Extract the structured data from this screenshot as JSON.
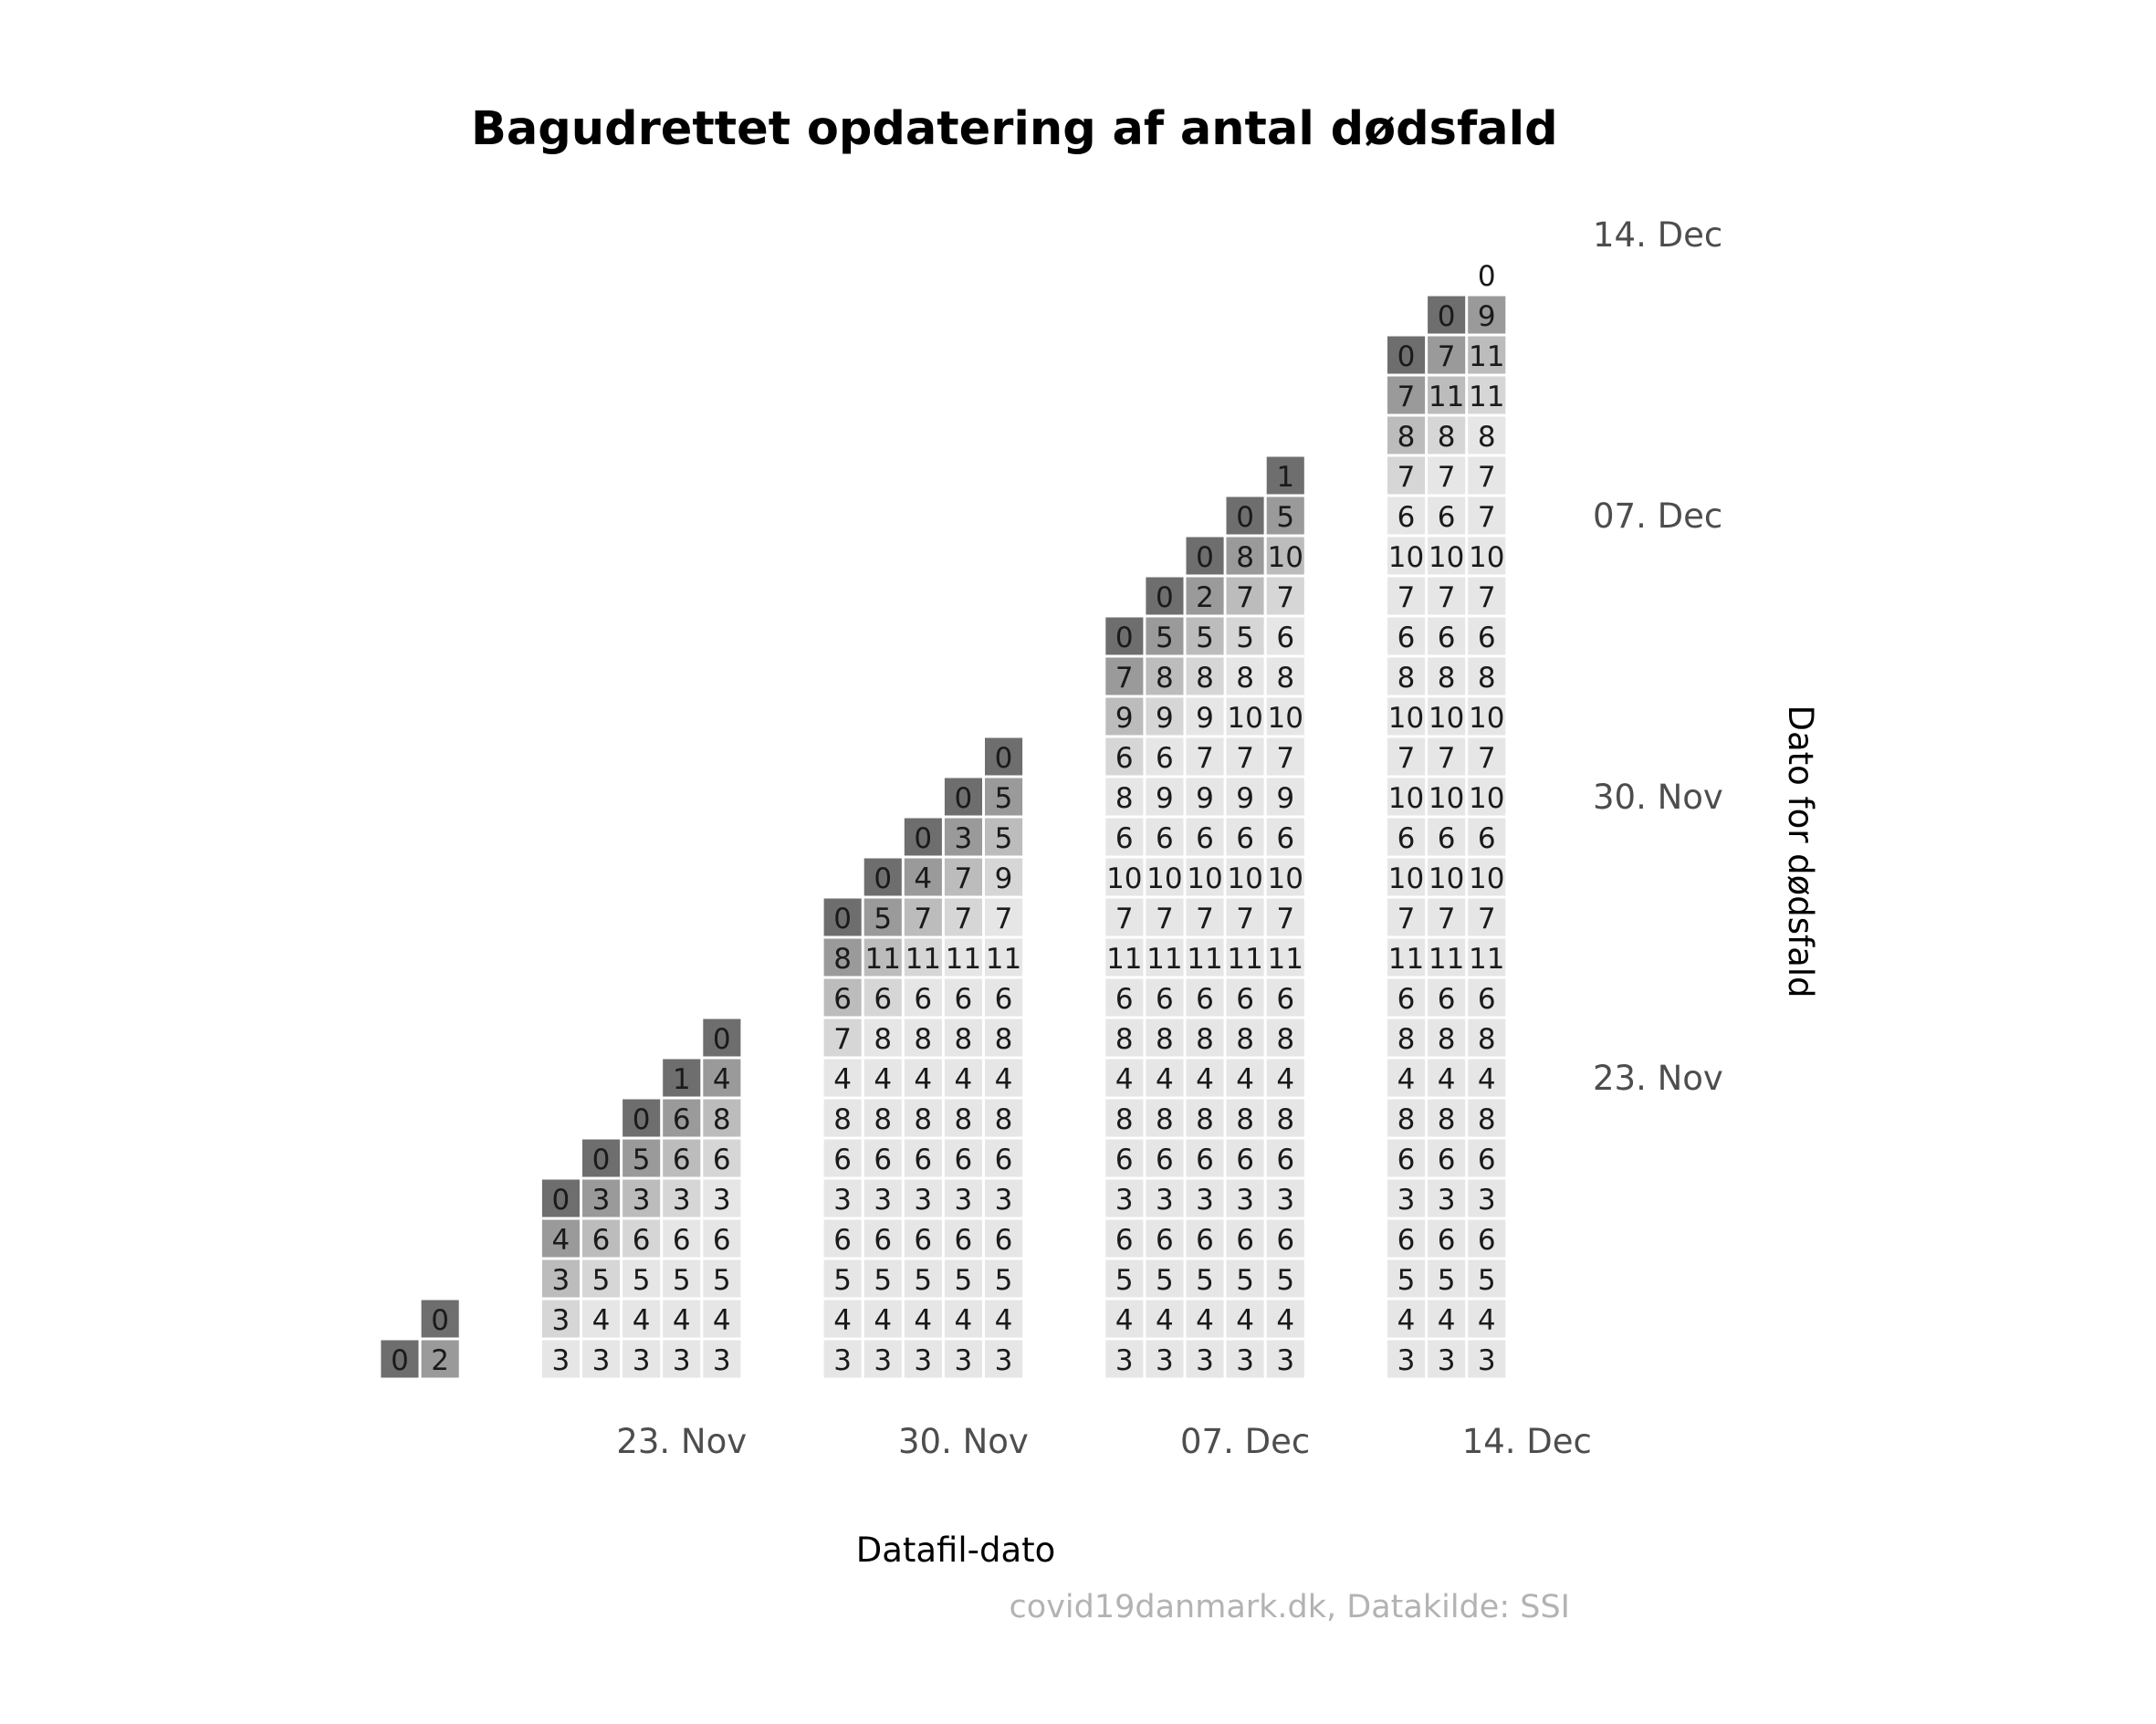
{
  "chart_data": {
    "type": "heatmap",
    "title": "Bagudrettet opdatering af antal dødsfald",
    "xlabel": "Datafil-dato",
    "ylabel": "Dato for dødsfald",
    "caption": "covid19danmark.dk, Datakilde: SSI",
    "x_ticks": [
      "23. Nov",
      "30. Nov",
      "07. Dec",
      "14. Dec"
    ],
    "y_ticks": [
      "23. Nov",
      "30. Nov",
      "07. Dec",
      "14. Dec"
    ],
    "columns": [
      {
        "x": "2020-11-16",
        "start": "2020-11-16",
        "values": [
          0
        ]
      },
      {
        "x": "2020-11-17",
        "start": "2020-11-16",
        "values": [
          2,
          0
        ]
      },
      {
        "x": "2020-11-20",
        "start": "2020-11-16",
        "values": [
          3,
          3,
          3,
          4,
          0
        ]
      },
      {
        "x": "2020-11-21",
        "start": "2020-11-16",
        "values": [
          3,
          4,
          5,
          6,
          3,
          0
        ]
      },
      {
        "x": "2020-11-22",
        "start": "2020-11-16",
        "values": [
          3,
          4,
          5,
          6,
          3,
          5,
          0
        ]
      },
      {
        "x": "2020-11-23",
        "start": "2020-11-16",
        "values": [
          3,
          4,
          5,
          6,
          3,
          6,
          6,
          1
        ]
      },
      {
        "x": "2020-11-24",
        "start": "2020-11-16",
        "values": [
          3,
          4,
          5,
          6,
          3,
          6,
          8,
          4,
          0
        ]
      },
      {
        "x": "2020-11-27",
        "start": "2020-11-16",
        "values": [
          3,
          4,
          5,
          6,
          3,
          6,
          8,
          4,
          7,
          6,
          8,
          0
        ]
      },
      {
        "x": "2020-11-28",
        "start": "2020-11-16",
        "values": [
          3,
          4,
          5,
          6,
          3,
          6,
          8,
          4,
          8,
          6,
          11,
          5,
          0
        ]
      },
      {
        "x": "2020-11-29",
        "start": "2020-11-16",
        "values": [
          3,
          4,
          5,
          6,
          3,
          6,
          8,
          4,
          8,
          6,
          11,
          7,
          4,
          0
        ]
      },
      {
        "x": "2020-11-30",
        "start": "2020-11-16",
        "values": [
          3,
          4,
          5,
          6,
          3,
          6,
          8,
          4,
          8,
          6,
          11,
          7,
          7,
          3,
          0
        ]
      },
      {
        "x": "2020-12-01",
        "start": "2020-11-16",
        "values": [
          3,
          4,
          5,
          6,
          3,
          6,
          8,
          4,
          8,
          6,
          11,
          7,
          9,
          5,
          5,
          0
        ]
      },
      {
        "x": "2020-12-04",
        "start": "2020-11-16",
        "values": [
          3,
          4,
          5,
          6,
          3,
          6,
          8,
          4,
          8,
          6,
          11,
          7,
          10,
          6,
          8,
          6,
          9,
          7,
          0
        ]
      },
      {
        "x": "2020-12-05",
        "start": "2020-11-16",
        "values": [
          3,
          4,
          5,
          6,
          3,
          6,
          8,
          4,
          8,
          6,
          11,
          7,
          10,
          6,
          9,
          6,
          9,
          8,
          5,
          0
        ]
      },
      {
        "x": "2020-12-06",
        "start": "2020-11-16",
        "values": [
          3,
          4,
          5,
          6,
          3,
          6,
          8,
          4,
          8,
          6,
          11,
          7,
          10,
          6,
          9,
          7,
          9,
          8,
          5,
          2,
          0
        ]
      },
      {
        "x": "2020-12-07",
        "start": "2020-11-16",
        "values": [
          3,
          4,
          5,
          6,
          3,
          6,
          8,
          4,
          8,
          6,
          11,
          7,
          10,
          6,
          9,
          7,
          10,
          8,
          5,
          7,
          8,
          0
        ]
      },
      {
        "x": "2020-12-08",
        "start": "2020-11-16",
        "values": [
          3,
          4,
          5,
          6,
          3,
          6,
          8,
          4,
          8,
          6,
          11,
          7,
          10,
          6,
          9,
          7,
          10,
          8,
          6,
          7,
          10,
          5,
          1
        ]
      },
      {
        "x": "2020-12-11",
        "start": "2020-11-16",
        "values": [
          3,
          4,
          5,
          6,
          3,
          6,
          8,
          4,
          8,
          6,
          11,
          7,
          10,
          6,
          10,
          7,
          10,
          8,
          6,
          7,
          10,
          6,
          7,
          8,
          7,
          0
        ]
      },
      {
        "x": "2020-12-12",
        "start": "2020-11-16",
        "values": [
          3,
          4,
          5,
          6,
          3,
          6,
          8,
          4,
          8,
          6,
          11,
          7,
          10,
          6,
          10,
          7,
          10,
          8,
          6,
          7,
          10,
          6,
          7,
          8,
          11,
          7,
          0
        ]
      },
      {
        "x": "2020-12-13",
        "start": "2020-11-16",
        "values": [
          3,
          4,
          5,
          6,
          3,
          6,
          8,
          4,
          8,
          6,
          11,
          7,
          10,
          6,
          10,
          7,
          10,
          8,
          6,
          7,
          10,
          7,
          7,
          8,
          11,
          11,
          9,
          0
        ]
      }
    ],
    "color_scale": {
      "empty": "#ffffff",
      "grey_levels": [
        "#6e6e6e",
        "#9a9a9a",
        "#bcbcbc",
        "#d6d6d6",
        "#e6e6e6"
      ]
    },
    "grid": false,
    "legend": "none"
  }
}
